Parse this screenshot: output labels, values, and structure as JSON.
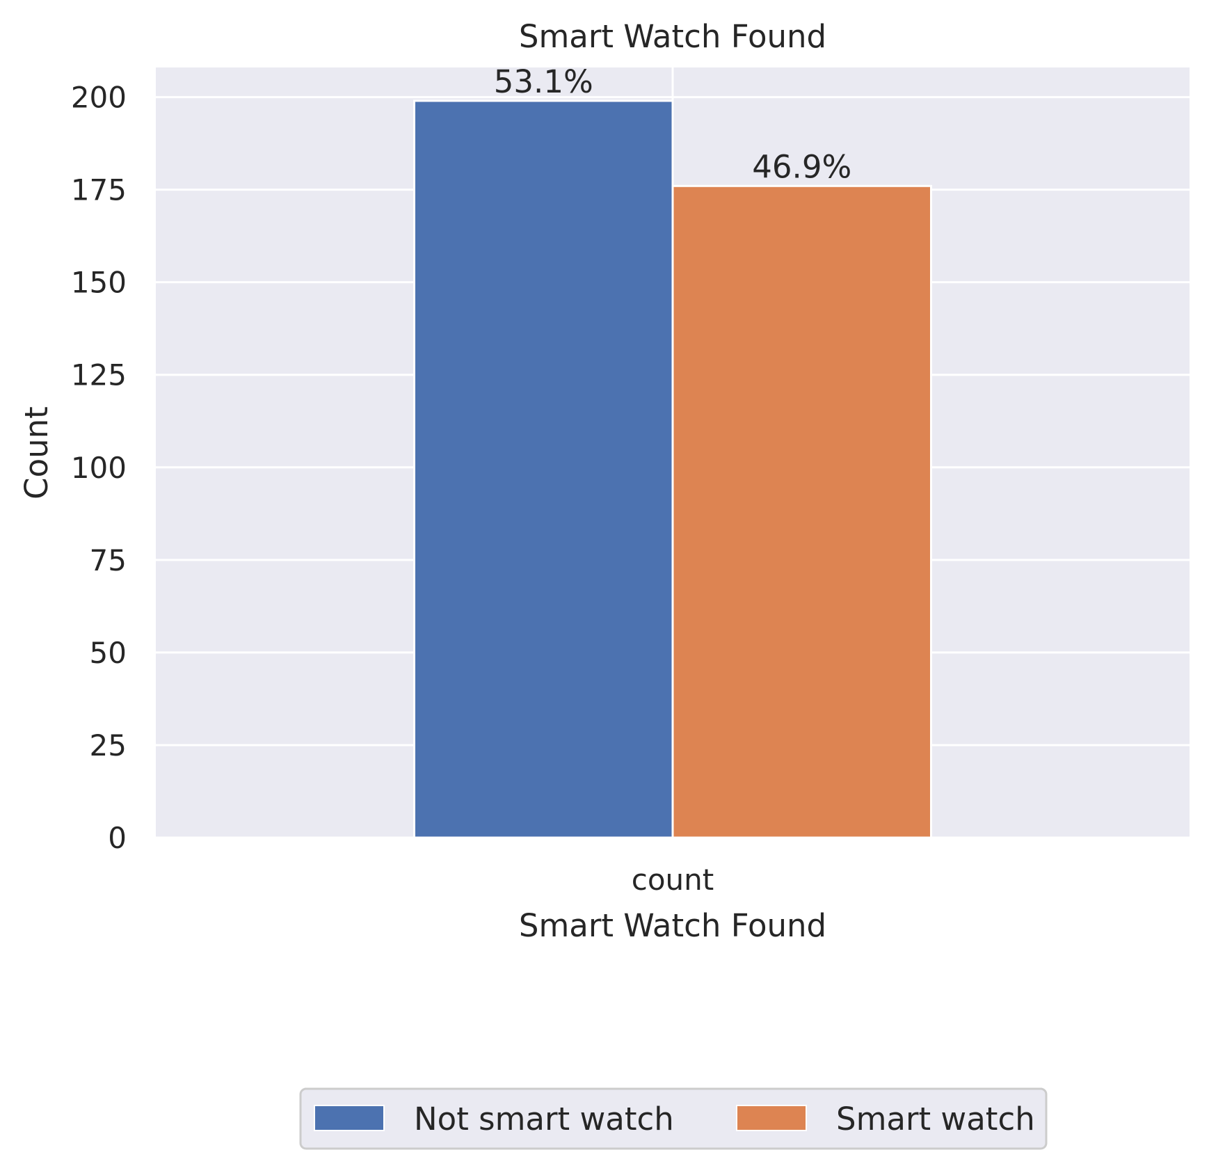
{
  "chart_data": {
    "type": "bar",
    "title": "Smart Watch Found",
    "xlabel": "Smart Watch Found",
    "ylabel": "Count",
    "categories": [
      "count"
    ],
    "series": [
      {
        "name": "Not smart watch",
        "values": [
          199
        ],
        "label": "53.1%",
        "color": "#4c72b0"
      },
      {
        "name": "Smart watch",
        "values": [
          176
        ],
        "label": "46.9%",
        "color": "#dd8452"
      }
    ],
    "ylim": [
      0,
      208
    ],
    "yticks": [
      0,
      25,
      50,
      75,
      100,
      125,
      150,
      175,
      200
    ],
    "grid": true,
    "legend_position": "bottom-center",
    "background_color": "#eaeaf2",
    "grid_color": "#ffffff"
  }
}
